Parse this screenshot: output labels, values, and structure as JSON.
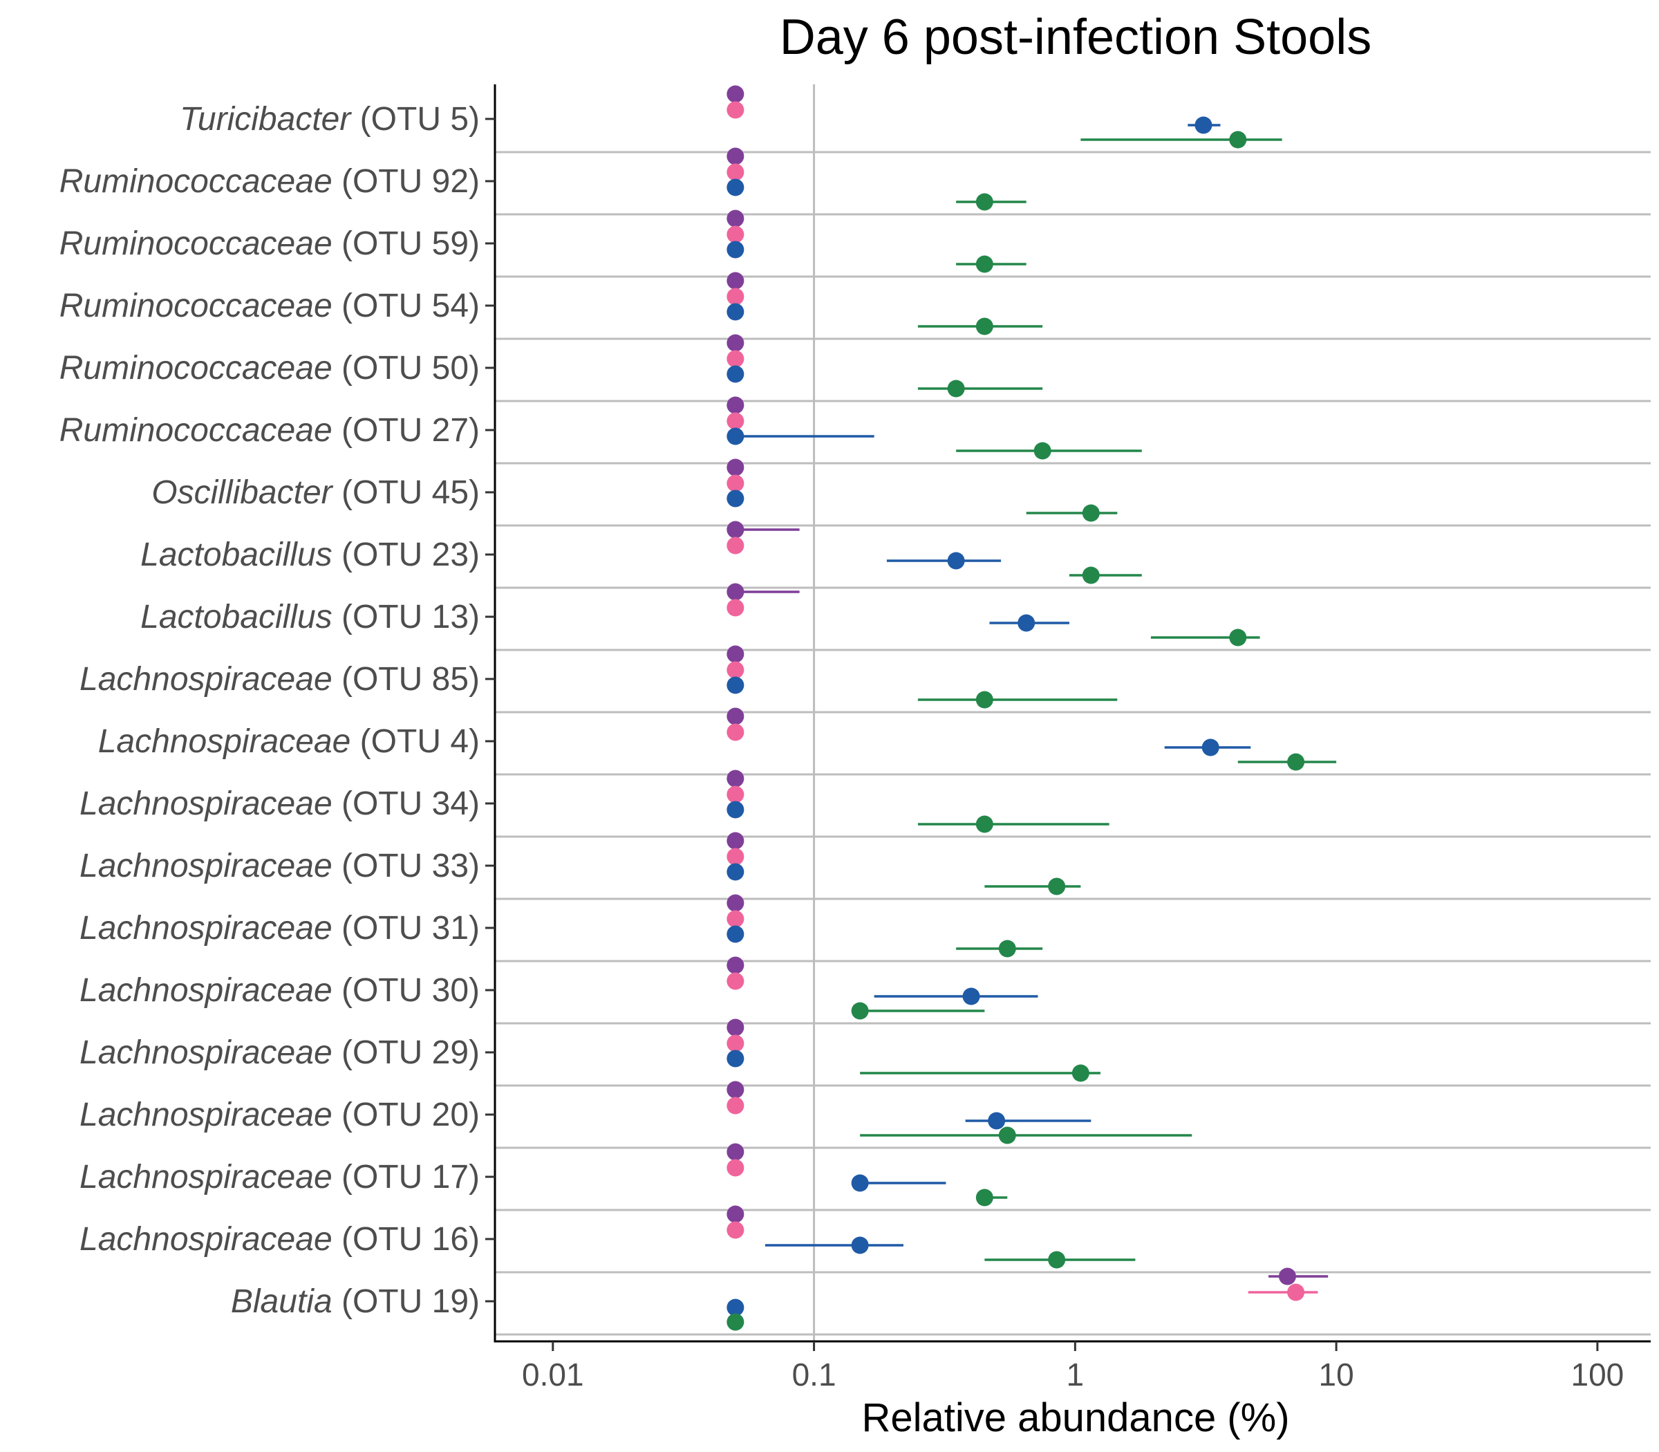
{
  "chart_data": {
    "type": "scatter",
    "title": "Day 6 post-infection Stools",
    "xlabel": "Relative abundance (%)",
    "ylabel": "",
    "x_scale": "log10",
    "xlim": [
      0.006,
      160
    ],
    "x_ticks": [
      {
        "value": 0.01,
        "label": "0.01"
      },
      {
        "value": 0.1,
        "label": "0.1"
      },
      {
        "value": 1,
        "label": "1"
      },
      {
        "value": 10,
        "label": "10"
      },
      {
        "value": 100,
        "label": "100"
      }
    ],
    "grid": "vertical major gridline at 0.1; horizontal separators between OTU groups",
    "legend": "none",
    "series_colors": [
      "#7f3f98",
      "#f0649c",
      "#1f5aa6",
      "#23874a"
    ],
    "categories": [
      {
        "genus": "Turicibacter",
        "otu": "(OTU 5)"
      },
      {
        "genus": "Ruminococcaceae",
        "otu": "(OTU 92)"
      },
      {
        "genus": "Ruminococcaceae",
        "otu": "(OTU 59)"
      },
      {
        "genus": "Ruminococcaceae",
        "otu": "(OTU 54)"
      },
      {
        "genus": "Ruminococcaceae",
        "otu": "(OTU 50)"
      },
      {
        "genus": "Ruminococcaceae",
        "otu": "(OTU 27)"
      },
      {
        "genus": "Oscillibacter",
        "otu": "(OTU 45)"
      },
      {
        "genus": "Lactobacillus",
        "otu": "(OTU 23)"
      },
      {
        "genus": "Lactobacillus",
        "otu": "(OTU 13)"
      },
      {
        "genus": "Lachnospiraceae",
        "otu": "(OTU 85)"
      },
      {
        "genus": "Lachnospiraceae",
        "otu": "(OTU 4)"
      },
      {
        "genus": "Lachnospiraceae",
        "otu": "(OTU 34)"
      },
      {
        "genus": "Lachnospiraceae",
        "otu": "(OTU 33)"
      },
      {
        "genus": "Lachnospiraceae",
        "otu": "(OTU 31)"
      },
      {
        "genus": "Lachnospiraceae",
        "otu": "(OTU 30)"
      },
      {
        "genus": "Lachnospiraceae",
        "otu": "(OTU 29)"
      },
      {
        "genus": "Lachnospiraceae",
        "otu": "(OTU 20)"
      },
      {
        "genus": "Lachnospiraceae",
        "otu": "(OTU 17)"
      },
      {
        "genus": "Lachnospiraceae",
        "otu": "(OTU 16)"
      },
      {
        "genus": "Blautia",
        "otu": "(OTU 19)"
      }
    ],
    "series": [
      {
        "color": "#7f3f98",
        "values": [
          0.05,
          0.05,
          0.05,
          0.05,
          0.05,
          0.05,
          0.05,
          0.05,
          0.05,
          0.05,
          0.05,
          0.05,
          0.05,
          0.05,
          0.05,
          0.05,
          0.05,
          0.05,
          0.05,
          6.5
        ],
        "low": [
          null,
          null,
          null,
          null,
          null,
          null,
          null,
          0.05,
          0.05,
          null,
          null,
          null,
          null,
          null,
          null,
          null,
          null,
          null,
          null,
          5.5
        ],
        "high": [
          null,
          null,
          null,
          null,
          null,
          null,
          null,
          0.088,
          0.088,
          null,
          null,
          null,
          null,
          null,
          null,
          null,
          null,
          null,
          null,
          9.3
        ]
      },
      {
        "color": "#f0649c",
        "values": [
          0.05,
          0.05,
          0.05,
          0.05,
          0.05,
          0.05,
          0.05,
          0.05,
          0.05,
          0.05,
          0.05,
          0.05,
          0.05,
          0.05,
          0.05,
          0.05,
          0.05,
          0.05,
          0.05,
          7.0
        ],
        "low": [
          null,
          null,
          null,
          null,
          null,
          null,
          null,
          null,
          null,
          null,
          null,
          null,
          null,
          null,
          null,
          null,
          null,
          null,
          null,
          4.6
        ],
        "high": [
          null,
          null,
          null,
          null,
          null,
          null,
          null,
          null,
          null,
          null,
          null,
          null,
          null,
          null,
          null,
          null,
          null,
          null,
          null,
          8.5
        ]
      },
      {
        "color": "#1f5aa6",
        "values": [
          3.1,
          0.05,
          0.05,
          0.05,
          0.05,
          0.05,
          0.05,
          0.35,
          0.65,
          0.05,
          3.3,
          0.05,
          0.05,
          0.05,
          0.4,
          0.05,
          0.5,
          0.15,
          0.15,
          0.05
        ],
        "low": [
          2.7,
          null,
          null,
          null,
          null,
          0.05,
          null,
          0.19,
          0.47,
          null,
          2.2,
          null,
          null,
          null,
          0.17,
          null,
          0.38,
          0.15,
          0.065,
          null
        ],
        "high": [
          3.6,
          null,
          null,
          null,
          null,
          0.17,
          null,
          0.52,
          0.95,
          null,
          4.7,
          null,
          null,
          null,
          0.72,
          null,
          1.15,
          0.32,
          0.22,
          null
        ]
      },
      {
        "color": "#23874a",
        "values": [
          4.2,
          0.45,
          0.45,
          0.45,
          0.35,
          0.75,
          1.15,
          1.15,
          4.2,
          0.45,
          7.0,
          0.45,
          0.85,
          0.55,
          0.15,
          1.05,
          0.55,
          0.45,
          0.85,
          0.05
        ],
        "low": [
          1.05,
          0.35,
          0.35,
          0.25,
          0.25,
          0.35,
          0.65,
          0.95,
          1.95,
          0.25,
          4.2,
          0.25,
          0.45,
          0.35,
          0.15,
          0.15,
          0.15,
          0.45,
          0.45,
          null
        ],
        "high": [
          6.2,
          0.65,
          0.65,
          0.75,
          0.75,
          1.8,
          1.45,
          1.8,
          5.1,
          1.45,
          10.0,
          1.35,
          1.05,
          0.75,
          0.45,
          1.25,
          2.8,
          0.55,
          1.7,
          null
        ]
      }
    ]
  }
}
